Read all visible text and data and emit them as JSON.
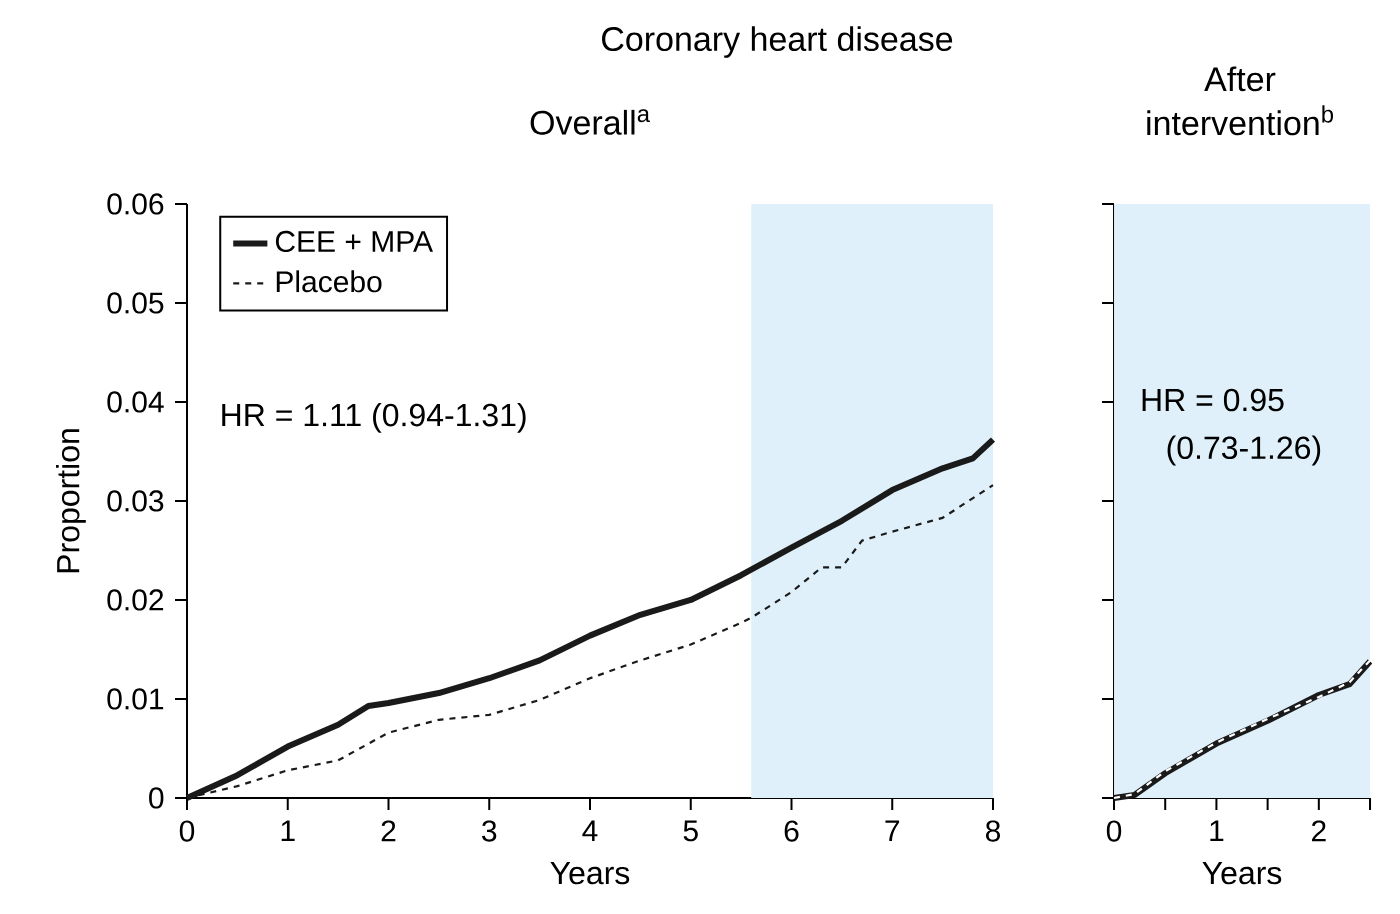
{
  "chart_data": [
    {
      "type": "line",
      "title": "Coronary heart disease",
      "subtitle": "Overall$^{a}$",
      "xlabel": "Years",
      "ylabel": "Proportion",
      "xlim": [
        0,
        8
      ],
      "xticks": [
        0,
        1,
        2,
        3,
        4,
        5,
        6,
        7,
        8
      ],
      "ylim": [
        0,
        0.06
      ],
      "yticks": [
        0,
        0.01,
        0.02,
        0.03,
        0.04,
        0.05,
        0.06
      ],
      "x": [
        0,
        0.5,
        1,
        1.5,
        1.8,
        2,
        2.5,
        3,
        3.5,
        4,
        4.5,
        5,
        5.5,
        6,
        6.5,
        7,
        7.5,
        7.8,
        8
      ],
      "series": [
        {
          "name": "CEE + MPA",
          "color": "#1a1a1a",
          "line_style": "solid",
          "values": [
            0,
            0.0023,
            0.0052,
            0.0074,
            0.0093,
            0.0096,
            0.0106,
            0.0121,
            0.0139,
            0.0164,
            0.0185,
            0.02,
            0.0225,
            0.0253,
            0.028,
            0.0311,
            0.0333,
            0.0343,
            0.0362
          ]
        },
        {
          "name": "Placebo",
          "color": "#1a1a1a",
          "line_style": "dashed",
          "x": [
            0,
            0.5,
            1,
            1.5,
            2,
            2.5,
            3,
            3.5,
            4,
            4.5,
            5,
            5.5,
            5.6,
            6,
            6.3,
            6.5,
            6.7,
            7,
            7.5,
            8
          ],
          "values": [
            0,
            0.0012,
            0.0028,
            0.0038,
            0.0066,
            0.0079,
            0.0084,
            0.0099,
            0.0121,
            0.0139,
            0.0155,
            0.0177,
            0.0182,
            0.0208,
            0.0233,
            0.0233,
            0.026,
            0.0269,
            0.0283,
            0.0316
          ]
        }
      ],
      "bands": [
        {
          "axis": "x",
          "from": 5.6,
          "to": 8,
          "color": "#dff0fa"
        }
      ],
      "annotations": [
        "HR = 1.11 (0.94-1.31)"
      ],
      "legend": "top left"
    },
    {
      "type": "line",
      "title": "After intervention$^{b}$",
      "xlabel": "Years",
      "xlim": [
        0,
        2.5
      ],
      "xticks": [
        0,
        {
          "value": 0.5,
          "label": null
        },
        1,
        {
          "value": 1.5,
          "label": null
        },
        2,
        {
          "value": 2.5,
          "label": null
        }
      ],
      "ylim": [
        0,
        0.06
      ],
      "yticks": [
        0,
        0.01,
        0.02,
        0.03,
        0.04,
        0.05,
        0.06
      ],
      "tick_labels": "x",
      "x": [
        0,
        0.2,
        0.5,
        1,
        1.5,
        2,
        2.3,
        2.5
      ],
      "series": [
        {
          "color": "#1a1a1a",
          "line_style": "solid",
          "values": [
            0,
            0.0003,
            0.0025,
            0.0055,
            0.0078,
            0.0104,
            0.0115,
            0.0138
          ]
        },
        {
          "color": "#ffffff",
          "line_style": "dashed",
          "values": [
            0,
            0.0004,
            0.0027,
            0.0056,
            0.008,
            0.0102,
            0.0117,
            0.0139
          ]
        }
      ],
      "bands": [
        {
          "axis": "x",
          "from": 0,
          "to": 2.5,
          "color": "#dff0fa"
        }
      ],
      "annotations": [
        "HR = 0.95",
        "(0.73-1.26)"
      ]
    }
  ]
}
